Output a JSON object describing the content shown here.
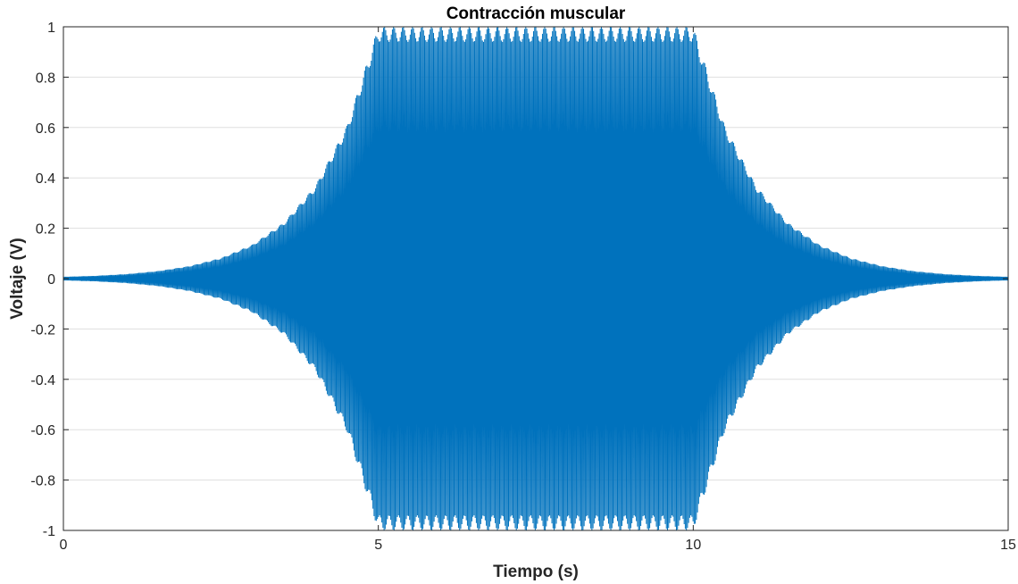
{
  "chart_data": {
    "type": "line",
    "title": "Contracción muscular",
    "xlabel": "Tiempo (s)",
    "ylabel": "Voltaje (V)",
    "xlim": [
      0,
      15
    ],
    "ylim": [
      -1,
      1
    ],
    "grid": "horizontal",
    "x_ticks": [
      0,
      5,
      10,
      15
    ],
    "x_tick_labels": [
      "0",
      "5",
      "10",
      "15"
    ],
    "y_ticks": [
      1,
      0.8,
      0.6,
      0.4,
      0.2,
      0,
      -0.2,
      -0.4,
      -0.6,
      -0.8,
      -1
    ],
    "y_tick_labels": [
      "1",
      "0.8",
      "0.6",
      "0.4",
      "0.2",
      "0",
      "-0.2",
      "-0.4",
      "-0.6",
      "-0.8",
      "-1"
    ],
    "series": [
      {
        "color": "#0072bd",
        "envelope": {
          "x": [
            0,
            0.5,
            1,
            1.5,
            2,
            2.5,
            3,
            3.5,
            4,
            4.5,
            5,
            10,
            10.5,
            11,
            11.5,
            12,
            12.5,
            13,
            13.5,
            14,
            14.5,
            15
          ],
          "amplitude": [
            0.007,
            0.011,
            0.018,
            0.03,
            0.05,
            0.082,
            0.135,
            0.223,
            0.368,
            0.607,
            1.0,
            1.0,
            0.607,
            0.368,
            0.223,
            0.135,
            0.082,
            0.05,
            0.03,
            0.018,
            0.011,
            0.007
          ]
        }
      }
    ]
  }
}
